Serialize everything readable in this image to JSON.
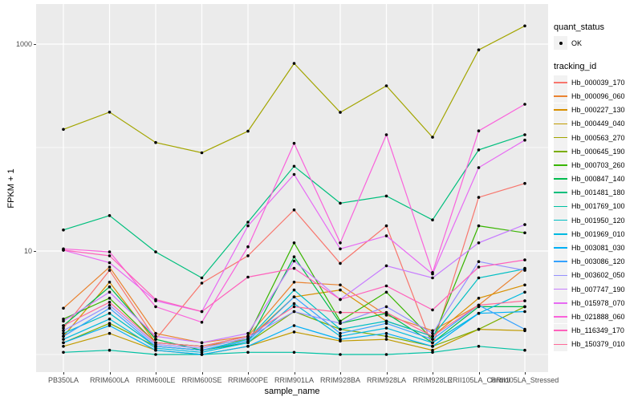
{
  "legend": {
    "quant_status": {
      "title": "quant_status",
      "items": [
        {
          "label": "OK"
        }
      ]
    },
    "tracking_id": {
      "title": "tracking_id"
    }
  },
  "colors": {
    "panel_bg": "#EBEBEB",
    "grid": "#FFFFFF",
    "legend_key_bg": "#F2F2F2",
    "tick_text": "#4D4D4D",
    "point": "#000000"
  },
  "chart_data": {
    "type": "line",
    "x_label": "sample_name",
    "y_label": "FPKM + 1",
    "y_scale": "log10",
    "y_tick_labels": [
      "1000",
      "10"
    ],
    "y_ticks": [
      1000,
      10
    ],
    "y_minor_ticks": [
      100,
      1
    ],
    "ylim": [
      0.67,
      2400
    ],
    "legend_position": "right",
    "grid": true,
    "point_marker": "black-dot",
    "categories": [
      "PB350LA",
      "RRIM600LA",
      "RRIM600LE",
      "RRIM600SE",
      "RRIM600PE",
      "RRIM901LA",
      "RRIM928BA",
      "RRIM928LA",
      "RRIM928LE",
      "RRII105LA_Control",
      "RRII105LA_Stressed"
    ],
    "series": [
      {
        "name": "Hb_000039_170",
        "color": "#F8766D",
        "values": [
          1.8,
          6.5,
          1.4,
          4.9,
          9,
          25,
          7.6,
          17.5,
          1.2,
          33,
          45
        ]
      },
      {
        "name": "Hb_000096_060",
        "color": "#EA8331",
        "values": [
          2.8,
          7.0,
          1.6,
          1.3,
          1.5,
          5.0,
          4.7,
          2.4,
          1.7,
          3.0,
          6.8
        ]
      },
      {
        "name": "Hb_000227_130",
        "color": "#D89000",
        "values": [
          1.5,
          5.0,
          1.3,
          1.2,
          1.4,
          3.6,
          4.2,
          2.1,
          1.5,
          3.5,
          4.7
        ]
      },
      {
        "name": "Hb_000449_040",
        "color": "#C09B00",
        "values": [
          1.2,
          1.6,
          1.1,
          1.0,
          1.2,
          1.65,
          1.35,
          1.4,
          1.1,
          1.75,
          1.7
        ]
      },
      {
        "name": "Hb_000563_270",
        "color": "#A3A500",
        "values": [
          150,
          220,
          112,
          89,
          144,
          650,
          219,
          395,
          126,
          880,
          1500
        ]
      },
      {
        "name": "Hb_000645_190",
        "color": "#7CAE00",
        "values": [
          1.3,
          2.0,
          1.2,
          1.1,
          1.3,
          2.6,
          1.75,
          1.5,
          1.2,
          1.75,
          2.9
        ]
      },
      {
        "name": "Hb_000703_260",
        "color": "#39B600",
        "values": [
          2.2,
          3.5,
          1.3,
          1.2,
          1.5,
          12,
          2.1,
          4.0,
          1.4,
          17.5,
          15
        ]
      },
      {
        "name": "Hb_000847_140",
        "color": "#00BB4E",
        "values": [
          1.9,
          4.5,
          1.4,
          1.1,
          1.3,
          8.8,
          2.0,
          2.5,
          1.3,
          2.9,
          2.9
        ]
      },
      {
        "name": "Hb_001481_180",
        "color": "#00BF7D",
        "values": [
          16,
          22,
          9.8,
          5.5,
          19,
          66,
          29,
          34,
          20,
          95,
          133
        ]
      },
      {
        "name": "Hb_001769_100",
        "color": "#00C1A3",
        "values": [
          1.05,
          1.1,
          1.0,
          1.0,
          1.05,
          1.05,
          1.0,
          1.0,
          1.05,
          1.2,
          1.1
        ]
      },
      {
        "name": "Hb_001950_120",
        "color": "#00BFC4",
        "values": [
          1.6,
          2.5,
          1.2,
          1.1,
          1.4,
          4.2,
          1.75,
          2.1,
          1.5,
          5.5,
          6.7
        ]
      },
      {
        "name": "Hb_001969_010",
        "color": "#00BAE0",
        "values": [
          1.4,
          2.2,
          1.15,
          1.05,
          1.3,
          3.1,
          1.5,
          1.8,
          1.3,
          2.5,
          4.0
        ]
      },
      {
        "name": "Hb_003081_030",
        "color": "#00B0F6",
        "values": [
          1.3,
          1.9,
          1.1,
          1.0,
          1.2,
          1.9,
          1.4,
          1.6,
          1.2,
          2.5,
          2.6
        ]
      },
      {
        "name": "Hb_003086_120",
        "color": "#35A2FF",
        "values": [
          1.5,
          2.8,
          1.2,
          1.1,
          1.35,
          3.6,
          1.6,
          2.0,
          1.4,
          3.0,
          1.75
        ]
      },
      {
        "name": "Hb_003602_050",
        "color": "#9590FF",
        "values": [
          1.7,
          3.0,
          1.25,
          1.15,
          1.45,
          2.6,
          2.0,
          2.9,
          1.6,
          7.9,
          6.5
        ]
      },
      {
        "name": "Hb_007747_190",
        "color": "#C77CFF",
        "values": [
          2.1,
          4.0,
          1.5,
          1.3,
          1.6,
          8.0,
          3.4,
          7.2,
          5.5,
          12,
          18
        ]
      },
      {
        "name": "Hb_015978_070",
        "color": "#E76BF3",
        "values": [
          10.2,
          7.7,
          3.3,
          2.6,
          17.5,
          55,
          10.5,
          14,
          6.0,
          64,
          118
        ]
      },
      {
        "name": "Hb_021888_060",
        "color": "#FA62DB",
        "values": [
          10.5,
          9.8,
          2.9,
          2.05,
          11,
          110,
          12,
          133,
          6.2,
          145,
          262
        ]
      },
      {
        "name": "Hb_116349_170",
        "color": "#FF62BC",
        "values": [
          10.2,
          9.0,
          3.4,
          2.6,
          5.6,
          6.8,
          3.4,
          4.6,
          2.7,
          7.0,
          8.2
        ]
      },
      {
        "name": "Hb_150379_010",
        "color": "#FF6A98",
        "values": [
          1.9,
          3.2,
          1.3,
          1.2,
          1.5,
          2.9,
          2.55,
          2.55,
          1.5,
          3.0,
          3.3
        ]
      }
    ]
  }
}
